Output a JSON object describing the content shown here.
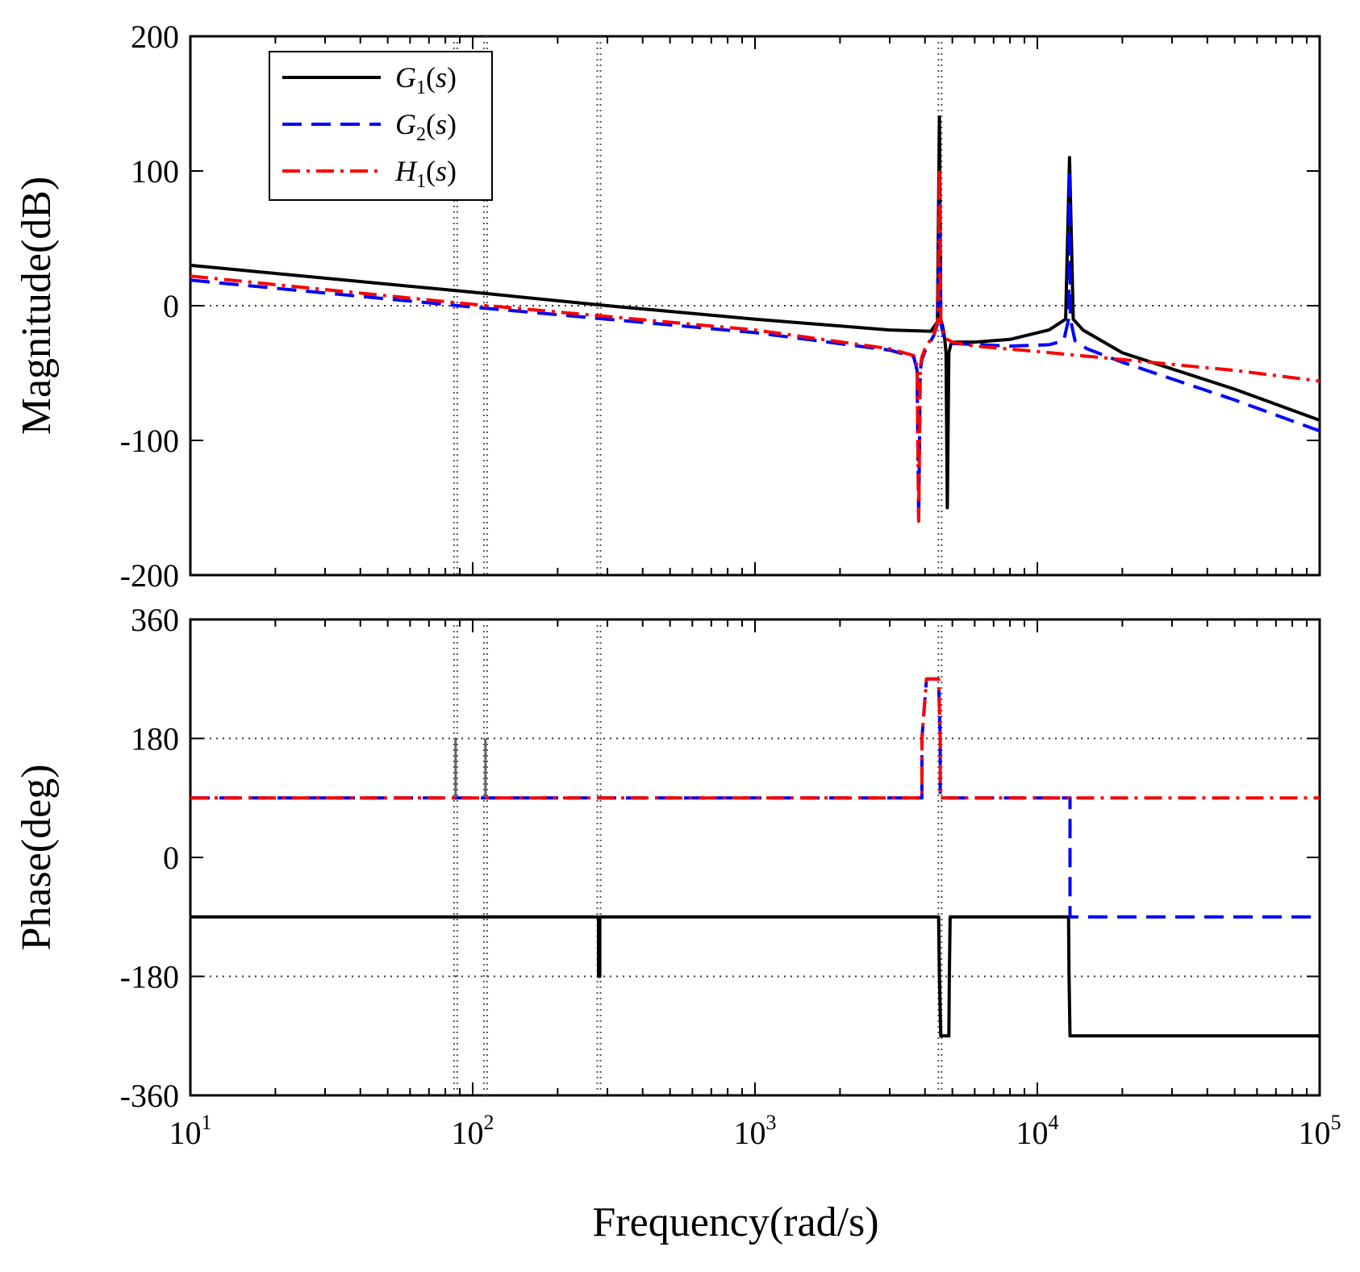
{
  "chart_data": [
    {
      "id": "magnitude",
      "type": "line",
      "xscale": "log",
      "xlim": [
        10,
        100000
      ],
      "ylim": [
        -200,
        200
      ],
      "ylabel": "Magnitude(dB)",
      "yticks": [
        200,
        100,
        0,
        -100,
        -200
      ],
      "ytick_labels": [
        "200",
        "100",
        "0",
        "-100",
        "-200"
      ],
      "grid_h": [
        0
      ],
      "marker_freqs": [
        87,
        111,
        280,
        4520
      ],
      "legend": {
        "placement": "top-left",
        "entries": [
          {
            "name": "G",
            "sub": "1",
            "arg": "s",
            "series": "G1"
          },
          {
            "name": "G",
            "sub": "2",
            "arg": "s",
            "series": "G2"
          },
          {
            "name": "H",
            "sub": "1",
            "arg": "s",
            "series": "H1"
          }
        ]
      },
      "series": [
        {
          "name": "G1(s)",
          "color": "#000000",
          "style": "solid",
          "x": [
            10,
            100,
            300,
            1000,
            3000,
            4200,
            4430,
            4500,
            4550,
            4600,
            4650,
            4700,
            4750,
            4800,
            4860,
            4950,
            5100,
            6000,
            8000,
            11000,
            12600,
            13000,
            13400,
            14500,
            20000,
            50000,
            100000
          ],
          "y": [
            30,
            10,
            0,
            -10,
            -18,
            -19,
            -12,
            140,
            -10,
            -14,
            -18,
            -25,
            -35,
            -150,
            -35,
            -28,
            -27,
            -27,
            -25,
            -18,
            -10,
            110,
            -10,
            -18,
            -35,
            -62,
            -85
          ]
        },
        {
          "name": "G2(s)",
          "color": "#0000ff",
          "style": "dash",
          "x": [
            10,
            100,
            300,
            1000,
            3000,
            3650,
            3750,
            3800,
            3850,
            3900,
            4000,
            4300,
            4450,
            4500,
            4550,
            4600,
            4700,
            5000,
            8000,
            11000,
            12400,
            12900,
            13000,
            13100,
            13600,
            15000,
            20000,
            50000,
            100000
          ],
          "y": [
            19,
            -1,
            -10,
            -20,
            -33,
            -38,
            -48,
            -160,
            -48,
            -40,
            -34,
            -22,
            -12,
            100,
            -12,
            -18,
            -25,
            -28,
            -30,
            -29,
            -26,
            -10,
            100,
            -10,
            -26,
            -32,
            -42,
            -70,
            -93
          ]
        },
        {
          "name": "H1(s)",
          "color": "#ff0000",
          "style": "dashdot",
          "x": [
            10,
            100,
            300,
            1000,
            3000,
            3650,
            3750,
            3800,
            3850,
            3900,
            4000,
            4300,
            4450,
            4500,
            4550,
            4600,
            4700,
            5000,
            6000,
            10000,
            20000,
            50000,
            100000
          ],
          "y": [
            22,
            1,
            -8,
            -18,
            -32,
            -37,
            -45,
            -160,
            -45,
            -38,
            -32,
            -21,
            -10,
            102,
            -10,
            -16,
            -24,
            -27,
            -30,
            -34,
            -40,
            -48,
            -56
          ]
        }
      ]
    },
    {
      "id": "phase",
      "type": "line",
      "xscale": "log",
      "xlim": [
        10,
        100000
      ],
      "ylim": [
        -360,
        360
      ],
      "xlabel": "Frequency(rad/s)",
      "ylabel": "Phase(deg)",
      "yticks": [
        360,
        180,
        0,
        -180,
        -360
      ],
      "ytick_labels": [
        "360",
        "180",
        "0",
        "-180",
        "-360"
      ],
      "xticks": [
        10,
        100,
        1000,
        10000,
        100000
      ],
      "xtick_labels": [
        {
          "base": "10",
          "exp": "1"
        },
        {
          "base": "10",
          "exp": "2"
        },
        {
          "base": "10",
          "exp": "3"
        },
        {
          "base": "10",
          "exp": "4"
        },
        {
          "base": "10",
          "exp": "5"
        }
      ],
      "grid_h": [
        180,
        -180
      ],
      "marker_freqs": [
        87,
        111,
        280,
        4520
      ],
      "series": [
        {
          "name": "G1(s)",
          "color": "#000000",
          "style": "solid",
          "x": [
            10,
            279,
            279,
            282,
            282,
            4470,
            4500,
            4550,
            4860,
            4880,
            4910,
            12900,
            12950,
            13050,
            100000
          ],
          "y": [
            -90,
            -90,
            -180,
            -180,
            -90,
            -90,
            -180,
            -270,
            -270,
            -180,
            -90,
            -90,
            -180,
            -270,
            -270
          ]
        },
        {
          "name": "G2(s)",
          "color": "#0000ff",
          "style": "dash",
          "x": [
            10,
            3900,
            3900,
            4050,
            4470,
            4530,
            4530,
            12950,
            13050,
            13050,
            100000
          ],
          "y": [
            90,
            90,
            180,
            270,
            270,
            180,
            90,
            90,
            90,
            -90,
            -90
          ]
        },
        {
          "name": "H1(s)",
          "color": "#ff0000",
          "style": "dashdot",
          "x": [
            10,
            3900,
            3900,
            4050,
            4470,
            4530,
            4530,
            100000
          ],
          "y": [
            90,
            90,
            180,
            270,
            270,
            180,
            90,
            90
          ]
        },
        {
          "name": "marker-spikes",
          "color": "#666666",
          "style": "solid",
          "segments": [
            [
              87,
              90,
              87,
              180
            ],
            [
              111,
              90,
              111,
              180
            ]
          ]
        }
      ]
    }
  ]
}
